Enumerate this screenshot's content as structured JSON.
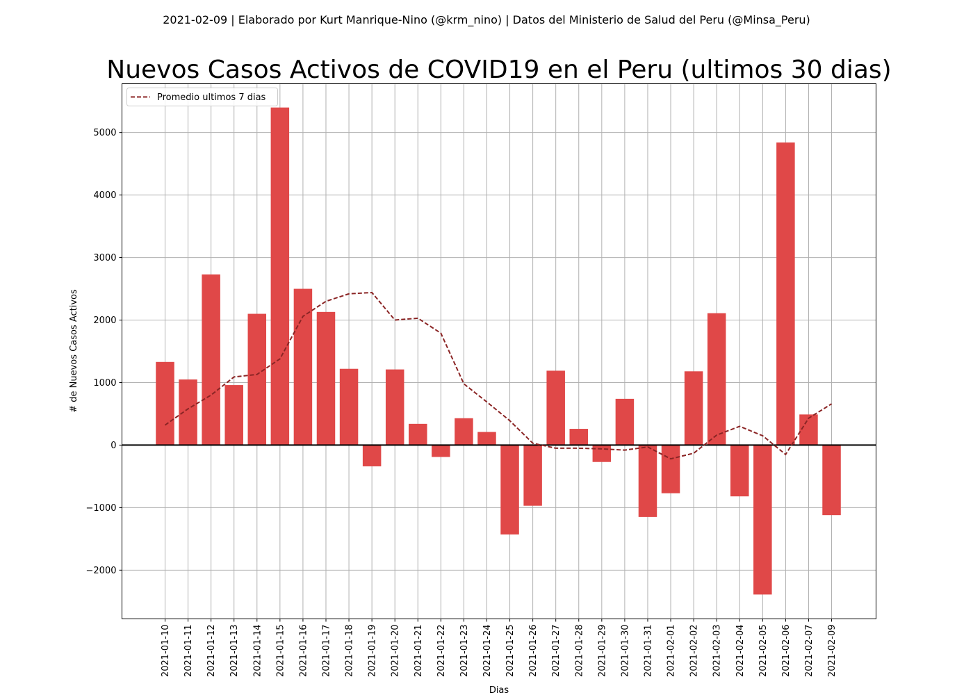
{
  "header": {
    "subtitle": "2021-02-09 | Elaborado por Kurt Manrique-Nino (@krm_nino) | Datos del Ministerio de Salud del Peru (@Minsa_Peru)"
  },
  "chart_data": {
    "type": "bar",
    "title": "Nuevos Casos Activos de COVID19 en el Peru (ultimos 30 dias)",
    "xlabel": "Dias",
    "ylabel": "# de Nuevos Casos Activos",
    "ylim": [
      -2780,
      5780
    ],
    "yticks": [
      -2000,
      -1000,
      0,
      1000,
      2000,
      3000,
      4000,
      5000
    ],
    "ytick_labels": [
      "−2000",
      "−1000",
      "0",
      "1000",
      "2000",
      "3000",
      "4000",
      "5000"
    ],
    "grid": true,
    "zero_line": true,
    "legend_position": "upper-left",
    "categories": [
      "2021-01-10",
      "2021-01-11",
      "2021-01-12",
      "2021-01-13",
      "2021-01-14",
      "2021-01-15",
      "2021-01-16",
      "2021-01-17",
      "2021-01-18",
      "2021-01-19",
      "2021-01-20",
      "2021-01-21",
      "2021-01-22",
      "2021-01-23",
      "2021-01-24",
      "2021-01-25",
      "2021-01-26",
      "2021-01-27",
      "2021-01-28",
      "2021-01-29",
      "2021-01-30",
      "2021-01-31",
      "2021-02-01",
      "2021-02-02",
      "2021-02-03",
      "2021-02-04",
      "2021-02-05",
      "2021-02-06",
      "2021-02-07",
      "2021-02-09"
    ],
    "series": [
      {
        "kind": "bar",
        "color": "#e04848",
        "values": [
          1330,
          1050,
          2730,
          960,
          2100,
          5400,
          2500,
          2130,
          1220,
          -340,
          1210,
          340,
          -190,
          430,
          210,
          -1430,
          -970,
          1190,
          260,
          -270,
          740,
          -1150,
          -770,
          1180,
          2110,
          -820,
          -2390,
          4840,
          490,
          -1120
        ]
      },
      {
        "name": "Promedio ultimos 7 dias",
        "kind": "line",
        "style": "dashed",
        "color": "#8b2525",
        "values": [
          320,
          580,
          800,
          1090,
          1130,
          1380,
          2060,
          2300,
          2420,
          2440,
          2000,
          2030,
          1790,
          980,
          690,
          390,
          30,
          -50,
          -50,
          -60,
          -80,
          -30,
          -220,
          -130,
          160,
          300,
          150,
          -150,
          430,
          660
        ]
      }
    ]
  }
}
